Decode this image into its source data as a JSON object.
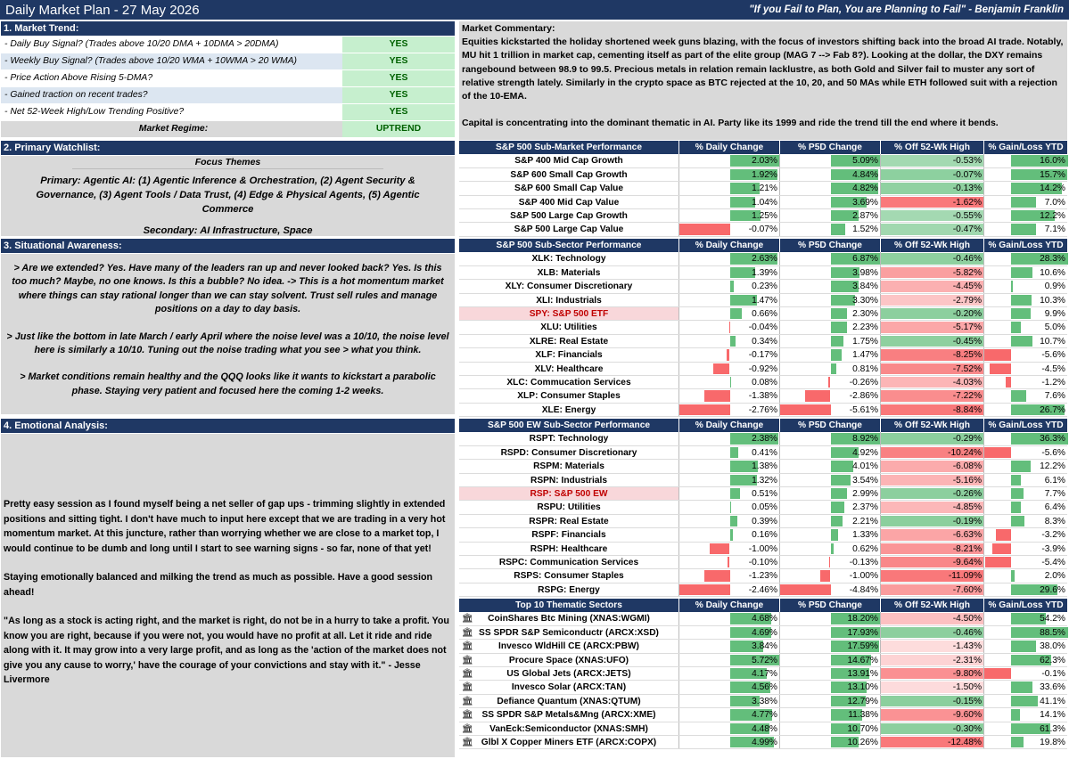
{
  "header": {
    "title": "Daily Market Plan - 27 May 2026",
    "quote": "\"If you Fail to Plan, You are Planning to Fail\" - Benjamin Franklin"
  },
  "trend": {
    "title": "1. Market Trend:",
    "rows": [
      {
        "label": "-  Daily Buy Signal? (Trades above 10/20 DMA + 10DMA > 20DMA)",
        "value": "YES"
      },
      {
        "label": "-  Weekly Buy Signal? (Trades above 10/20 WMA + 10WMA > 20 WMA)",
        "value": "YES"
      },
      {
        "label": "-  Price Action Above Rising 5-DMA?",
        "value": "YES"
      },
      {
        "label": "-  Gained traction on recent trades?",
        "value": "YES"
      },
      {
        "label": "-  Net 52-Week High/Low Trending Positive?",
        "value": "YES"
      }
    ],
    "regime_label": "Market Regime:",
    "regime_value": "UPTREND"
  },
  "commentary": {
    "title": "Market Commentary:",
    "p1": "Equities kickstarted the holiday shortened week guns blazing, with the focus of investors shifting back into the broad AI trade. Notably, MU hit 1 trillion in market cap, cementing itself as part of the elite group (MAG 7 --> Fab 8?). Looking at the dollar, the DXY remains rangebound between 98.9 to 99.5. Precious metals in relation remain lacklustre, as both Gold and Silver fail to muster any sort of relative strength lately. Similarly in the crypto space as BTC rejected at the 10, 20, and 50 MAs while ETH followed suit with a rejection of the 10-EMA.",
    "p2": "Capital is concentrating into the dominant thematic in AI. Party like its 1999 and ride the trend till the end where it bends."
  },
  "watchlist": {
    "title": "2. Primary Watchlist:",
    "focus": "Focus Themes",
    "primary": "Primary: Agentic AI: (1) Agentic Inference & Orchestration, (2) Agent Security & Governance, (3) Agent Tools / Data Trust, (4) Edge & Physical Agents, (5) Agentic Commerce",
    "secondary": "Secondary: AI Infrastructure, Space"
  },
  "awareness": {
    "title": "3. Situational Awareness:",
    "p1": "> Are we extended? Yes. Have many of the leaders ran up and never looked back? Yes. Is this too much? Maybe, no one knows. Is this a bubble? No idea. -> This is a hot momentum market where things can stay rational longer than we can stay solvent. Trust sell rules and manage positions on a day to day basis.",
    "p2": "> Just like the bottom in late March / early April where the noise level was a 10/10, the noise level here is similarly a 10/10. Tuning out the noise trading what you see > what you think.",
    "p3": "> Market conditions remain healthy and the QQQ looks like it wants to kickstart a parabolic phase. Staying very patient and focused here the coming 1-2 weeks."
  },
  "emotional": {
    "title": "4. Emotional Analysis:",
    "p1": "Pretty easy session as I found myself being a net seller of gap ups - trimming slightly in extended positions and sitting tight. I don't have much to input here except that we are trading in a very hot momentum market. At this juncture, rather than worrying whether we are close to a market top, I would continue to be dumb and long until I start to see warning signs - so far, none of that yet!",
    "p2": "Staying emotionally balanced and milking the trend as much as possible. Have a good session ahead!",
    "p3": "\"As long as a stock is acting right, and the market is right, do not be in a hurry to take a profit. You know you are right, because if you were not, you would have no profit at all. Let it ride and ride along with it. It may grow into a very large profit, and as long as the 'action of the market does not give you any cause to worry,' have the courage of your convictions and stay with it.\" - Jesse Livermore"
  },
  "colors": {
    "navy": "#1f3864",
    "green": "#63be7b",
    "red": "#f8696b",
    "yes_bg": "#c6efce",
    "yes_text": "#006100",
    "highlight": "#c00000"
  },
  "tables": [
    {
      "header": [
        "S&P 500 Sub-Market Performance",
        "% Daily Change",
        "% P5D Change",
        "% Off 52-Wk High",
        "% Gain/Loss YTD"
      ],
      "rows": [
        [
          "S&P 400 Mid Cap Growth",
          "2.03%",
          "5.09%",
          "-0.53%",
          "16.0%"
        ],
        [
          "S&P 600 Small Cap Growth",
          "1.92%",
          "4.84%",
          "-0.07%",
          "15.7%"
        ],
        [
          "S&P 600 Small Cap Value",
          "1.21%",
          "4.82%",
          "-0.13%",
          "14.2%"
        ],
        [
          "S&P 400 Mid Cap Value",
          "1.04%",
          "3.69%",
          "-1.62%",
          "7.0%"
        ],
        [
          "S&P 500 Large Cap Growth",
          "1.25%",
          "2.87%",
          "-0.55%",
          "12.2%"
        ],
        [
          "S&P 500 Large Cap Value",
          "-0.07%",
          "1.52%",
          "-0.47%",
          "7.1%"
        ]
      ]
    },
    {
      "header": [
        "S&P 500 Sub-Sector Performance",
        "% Daily Change",
        "% P5D Change",
        "% Off 52-Wk High",
        "% Gain/Loss YTD"
      ],
      "rows": [
        [
          "XLK: Technology",
          "2.63%",
          "6.87%",
          "-0.46%",
          "28.3%"
        ],
        [
          "XLB: Materials",
          "1.39%",
          "3.98%",
          "-5.82%",
          "10.6%"
        ],
        [
          "XLY: Consumer Discretionary",
          "0.23%",
          "3.84%",
          "-4.45%",
          "0.9%"
        ],
        [
          "XLI: Industrials",
          "1.47%",
          "3.30%",
          "-2.79%",
          "10.3%"
        ],
        [
          "SPY: S&P 500 ETF",
          "0.66%",
          "2.30%",
          "-0.20%",
          "9.9%"
        ],
        [
          "XLU: Utilities",
          "-0.04%",
          "2.23%",
          "-5.17%",
          "5.0%"
        ],
        [
          "XLRE: Real Estate",
          "0.34%",
          "1.75%",
          "-0.45%",
          "10.7%"
        ],
        [
          "XLF: Financials",
          "-0.17%",
          "1.47%",
          "-8.25%",
          "-5.6%"
        ],
        [
          "XLV: Healthcare",
          "-0.92%",
          "0.81%",
          "-7.52%",
          "-4.5%"
        ],
        [
          "XLC: Commucation Services",
          "0.08%",
          "-0.26%",
          "-4.03%",
          "-1.2%"
        ],
        [
          "XLP: Consumer Staples",
          "-1.38%",
          "-2.86%",
          "-7.22%",
          "7.6%"
        ],
        [
          "XLE: Energy",
          "-2.76%",
          "-5.61%",
          "-8.84%",
          "26.7%"
        ]
      ]
    },
    {
      "header": [
        "S&P 500 EW Sub-Sector Performance",
        "% Daily Change",
        "% P5D Change",
        "% Off 52-Wk High",
        "% Gain/Loss YTD"
      ],
      "rows": [
        [
          "RSPT: Technology",
          "2.38%",
          "8.92%",
          "-0.29%",
          "36.3%"
        ],
        [
          "RSPD: Consumer Discretionary",
          "0.41%",
          "4.92%",
          "-10.24%",
          "-5.6%"
        ],
        [
          "RSPM: Materials",
          "1.38%",
          "4.01%",
          "-6.08%",
          "12.2%"
        ],
        [
          "RSPN: Industrials",
          "1.32%",
          "3.54%",
          "-5.16%",
          "6.1%"
        ],
        [
          "RSP: S&P 500 EW",
          "0.51%",
          "2.99%",
          "-0.26%",
          "7.7%"
        ],
        [
          "RSPU: Utilities",
          "0.05%",
          "2.37%",
          "-4.85%",
          "6.4%"
        ],
        [
          "RSPR: Real Estate",
          "0.39%",
          "2.21%",
          "-0.19%",
          "8.3%"
        ],
        [
          "RSPF: Financials",
          "0.16%",
          "1.33%",
          "-6.63%",
          "-3.2%"
        ],
        [
          "RSPH: Healthcare",
          "-1.00%",
          "0.62%",
          "-8.21%",
          "-3.9%"
        ],
        [
          "RSPC: Communication Services",
          "-0.10%",
          "-0.13%",
          "-9.64%",
          "-5.4%"
        ],
        [
          "RSPS: Consumer Staples",
          "-1.23%",
          "-1.00%",
          "-11.09%",
          "2.0%"
        ],
        [
          "RSPG: Energy",
          "-2.46%",
          "-4.84%",
          "-7.60%",
          "29.6%"
        ]
      ]
    },
    {
      "header": [
        "Top 10 Thematic Sectors",
        "% Daily Change",
        "% P5D Change",
        "% Off 52-Wk High",
        "% Gain/Loss YTD"
      ],
      "rows": [
        [
          "CoinShares Btc Mining (XNAS:WGMI)",
          "4.68%",
          "18.20%",
          "-4.50%",
          "54.2%"
        ],
        [
          "SS SPDR S&P Semiconductr (ARCX:XSD)",
          "4.69%",
          "17.93%",
          "-0.46%",
          "88.5%"
        ],
        [
          "Invesco WldHill CE (ARCX:PBW)",
          "3.84%",
          "17.59%",
          "-1.43%",
          "38.0%"
        ],
        [
          "Procure Space (XNAS:UFO)",
          "5.72%",
          "14.67%",
          "-2.31%",
          "62.3%"
        ],
        [
          "US Global Jets (ARCX:JETS)",
          "4.17%",
          "13.91%",
          "-9.80%",
          "-0.1%"
        ],
        [
          "Invesco Solar (ARCX:TAN)",
          "4.56%",
          "13.10%",
          "-1.50%",
          "33.6%"
        ],
        [
          "Defiance Quantum (XNAS:QTUM)",
          "3.38%",
          "12.79%",
          "-0.15%",
          "41.1%"
        ],
        [
          "SS SPDR S&P Metals&Mng (ARCX:XME)",
          "4.77%",
          "11.38%",
          "-9.60%",
          "14.1%"
        ],
        [
          "VanEck:Semiconductor (XNAS:SMH)",
          "4.48%",
          "10.70%",
          "-0.30%",
          "61.3%"
        ],
        [
          "Glbl X Copper Miners ETF (ARCX:COPX)",
          "4.99%",
          "10.26%",
          "-12.48%",
          "19.8%"
        ]
      ]
    }
  ]
}
